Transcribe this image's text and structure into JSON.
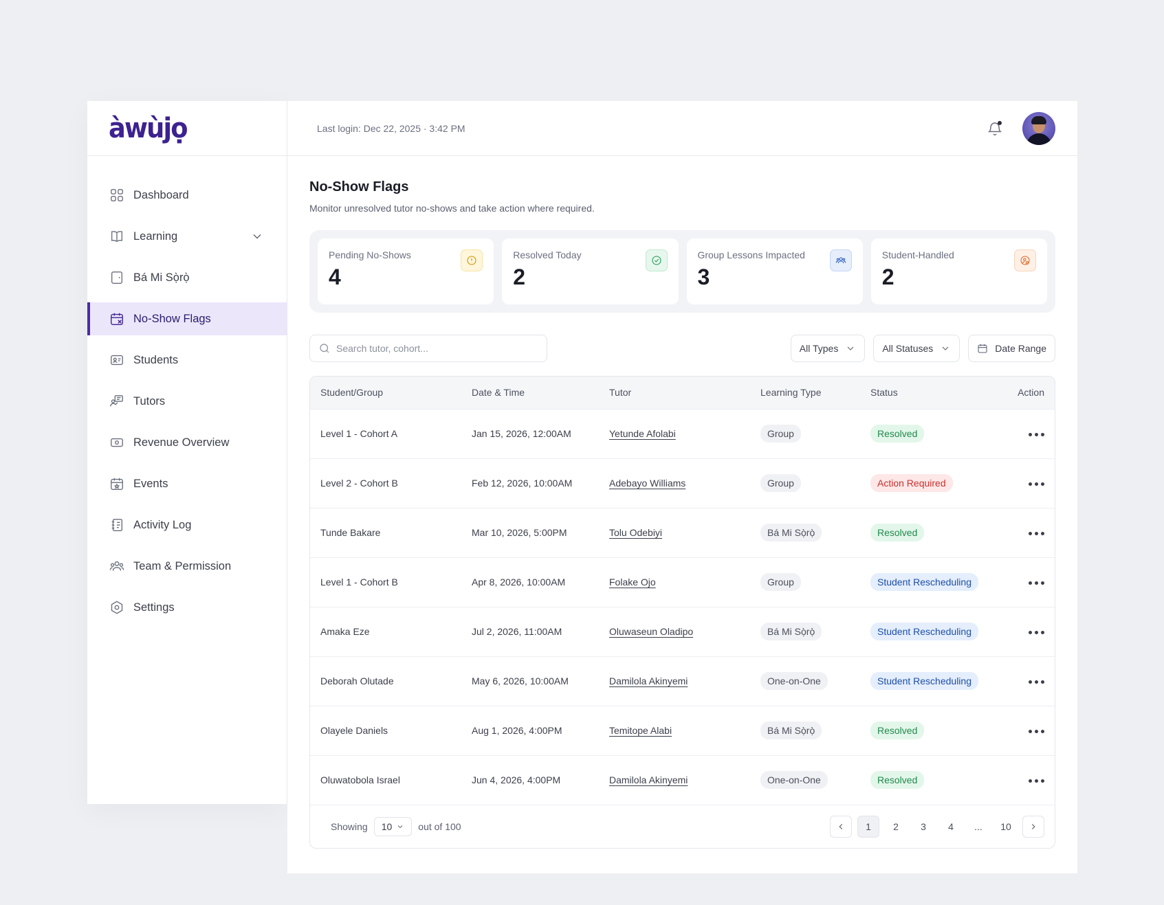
{
  "brand": {
    "logo_text": "àwùjọ"
  },
  "sidebar": {
    "items": [
      {
        "label": "Dashboard",
        "icon": "grid-icon"
      },
      {
        "label": "Learning",
        "icon": "book-icon"
      },
      {
        "label": "Bá Mi Sọ̀rọ̀",
        "icon": "tablet-icon"
      },
      {
        "label": "No-Show Flags",
        "icon": "calendar-x-icon",
        "active": true
      },
      {
        "label": "Students",
        "icon": "id-card-icon"
      },
      {
        "label": "Tutors",
        "icon": "teacher-icon"
      },
      {
        "label": "Revenue Overview",
        "icon": "money-icon"
      },
      {
        "label": "Events",
        "icon": "calendar-star-icon"
      },
      {
        "label": "Activity Log",
        "icon": "log-icon"
      },
      {
        "label": "Team & Permission",
        "icon": "users-icon"
      },
      {
        "label": "Settings",
        "icon": "gear-icon"
      }
    ]
  },
  "header": {
    "last_login": "Last login: Dec 22, 2025 · 3:42 PM"
  },
  "page": {
    "title": "No-Show Flags",
    "subtitle": "Monitor unresolved tutor no-shows and take action where required."
  },
  "stats": [
    {
      "label": "Pending No-Shows",
      "value": "4",
      "icon": "alert-circle-icon",
      "color": "#c99400"
    },
    {
      "label": "Resolved Today",
      "value": "2",
      "icon": "check-circle-icon",
      "color": "#1f9a55"
    },
    {
      "label": "Group Lessons Impacted",
      "value": "3",
      "icon": "group-icon",
      "color": "#2f5ec0"
    },
    {
      "label": "Student-Handled",
      "value": "2",
      "icon": "user-settings-icon",
      "color": "#d9692a"
    }
  ],
  "filters": {
    "search_placeholder": "Search tutor, cohort...",
    "type": "All Types",
    "status": "All Statuses",
    "date": "Date Range"
  },
  "table": {
    "headers": [
      "Student/Group",
      "Date & Time",
      "Tutor",
      "Learning Type",
      "Status",
      "Action"
    ],
    "rows": [
      {
        "student": "Level 1 - Cohort A",
        "datetime": "Jan 15, 2026, 12:00AM",
        "tutor": "Yetunde Afolabi",
        "type": "Group",
        "status": "Resolved"
      },
      {
        "student": "Level 2 - Cohort B",
        "datetime": "Feb 12, 2026, 10:00AM",
        "tutor": "Adebayo Williams",
        "type": "Group",
        "status": "Action Required"
      },
      {
        "student": "Tunde Bakare",
        "datetime": "Mar 10, 2026, 5:00PM",
        "tutor": "Tolu Odebiyi",
        "type": "Bá Mi Sọ̀rọ̀",
        "status": "Resolved"
      },
      {
        "student": "Level 1 - Cohort B",
        "datetime": "Apr 8, 2026, 10:00AM",
        "tutor": "Folake Ojo",
        "type": "Group",
        "status": "Student Rescheduling"
      },
      {
        "student": "Amaka Eze",
        "datetime": "Jul 2, 2026, 11:00AM",
        "tutor": "Oluwaseun Oladipo",
        "type": "Bá Mi Sọ̀rọ̀",
        "status": "Student Rescheduling"
      },
      {
        "student": "Deborah Olutade",
        "datetime": "May 6, 2026, 10:00AM",
        "tutor": "Damilola Akinyemi",
        "type": "One-on-One",
        "status": "Student Rescheduling"
      },
      {
        "student": "Olayele Daniels",
        "datetime": "Aug 1, 2026, 4:00PM",
        "tutor": "Temitope Alabi",
        "type": "Bá Mi Sọ̀rọ̀",
        "status": "Resolved"
      },
      {
        "student": "Oluwatobola Israel",
        "datetime": "Jun 4, 2026, 4:00PM",
        "tutor": "Damilola Akinyemi",
        "type": "One-on-One",
        "status": "Resolved"
      }
    ]
  },
  "pagination": {
    "showing_label": "Showing",
    "page_size": "10",
    "out_of": "out of 100",
    "pages": [
      "1",
      "2",
      "3",
      "4",
      "...",
      "10"
    ],
    "current": "1"
  },
  "colors": {
    "accent": "#3d2290",
    "active_bg": "#ece6fb"
  }
}
